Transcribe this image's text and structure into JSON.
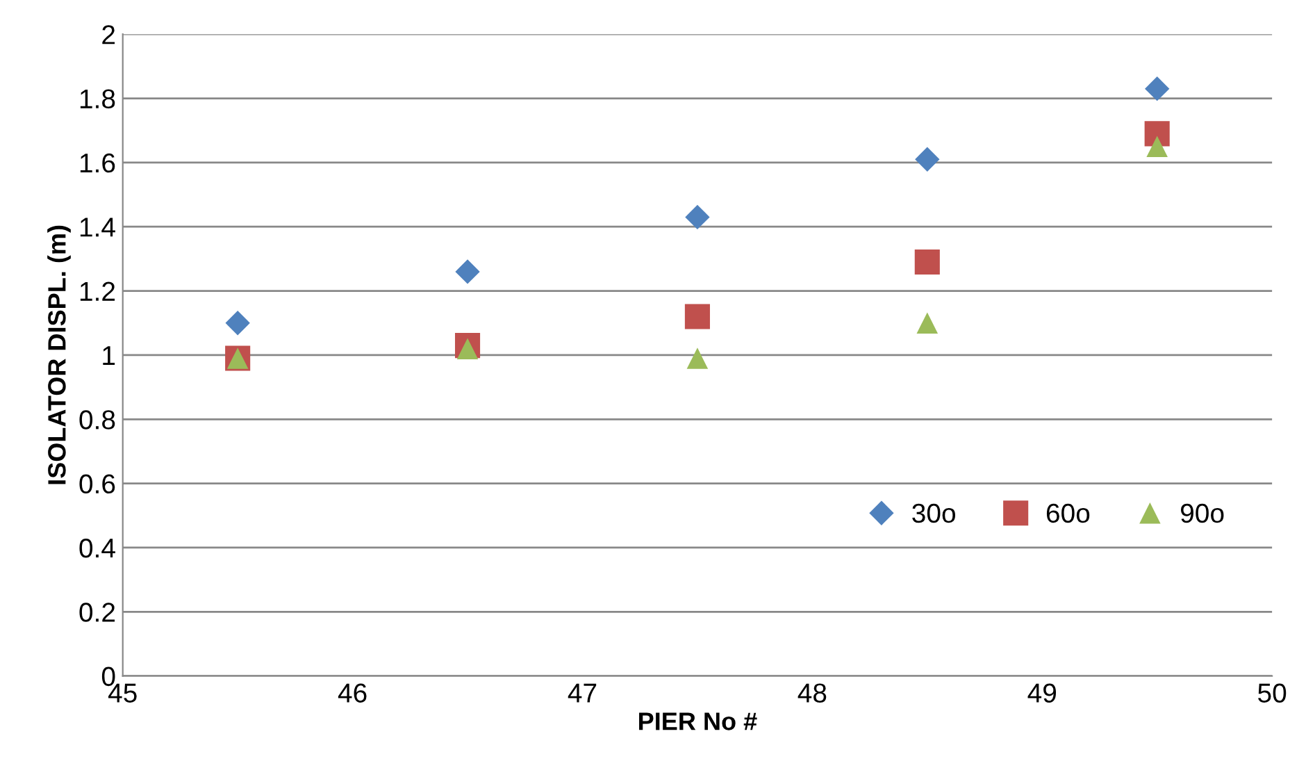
{
  "chart_data": {
    "type": "scatter",
    "xlabel": "PIER No #",
    "ylabel": "ISOLATOR DISPL. (m)",
    "x": [
      45.5,
      46.5,
      47.5,
      48.5,
      49.5
    ],
    "series": [
      {
        "name": "30o",
        "color": "#4f81bd",
        "marker": "diamond",
        "values": [
          1.1,
          1.26,
          1.43,
          1.61,
          1.83
        ]
      },
      {
        "name": "60o",
        "color": "#c0504d",
        "marker": "square",
        "values": [
          0.99,
          1.03,
          1.12,
          1.29,
          1.69
        ]
      },
      {
        "name": "90o",
        "color": "#9bbb59",
        "marker": "triangle",
        "values": [
          0.99,
          1.02,
          0.99,
          1.1,
          1.65
        ]
      }
    ],
    "xlim": [
      45,
      50
    ],
    "xticks": [
      45,
      46,
      47,
      48,
      49,
      50
    ],
    "ylim": [
      0,
      2
    ],
    "yticks": [
      0,
      0.2,
      0.4,
      0.6,
      0.8,
      1,
      1.2,
      1.4,
      1.6,
      1.8,
      2
    ],
    "grid": "y",
    "legend": "right"
  }
}
